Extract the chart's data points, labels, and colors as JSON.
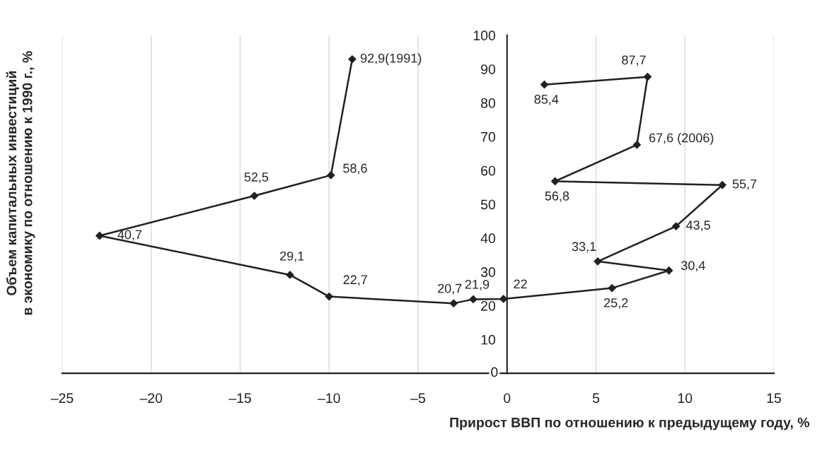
{
  "chart_data": {
    "type": "line",
    "xlabel": "Прирост ВВП по отношению к предыдущему году, %",
    "ylabel": "Объем капитальных инвестиций\nв экономику по отношению к 1990 г., %",
    "xlim": [
      -25,
      15
    ],
    "ylim": [
      0,
      100
    ],
    "xticks": [
      {
        "value": -25,
        "label": "–25"
      },
      {
        "value": -20,
        "label": "–20"
      },
      {
        "value": -15,
        "label": "–15"
      },
      {
        "value": -10,
        "label": "–10"
      },
      {
        "value": -5,
        "label": "–5"
      },
      0,
      5,
      10,
      15
    ],
    "yticks": [
      0,
      10,
      20,
      30,
      40,
      50,
      60,
      70,
      80,
      90,
      100
    ],
    "grid": "x",
    "marker": "diamond",
    "line_style": "solid",
    "series": [
      {
        "color": "#231f20",
        "x": [
          -8.7,
          -9.9,
          -14.2,
          -22.9,
          -12.2,
          -10.0,
          -3.0,
          -1.9,
          -0.2,
          5.9,
          9.1,
          5.1,
          9.5,
          12.1,
          2.7,
          7.3,
          7.9,
          2.1
        ],
        "values": [
          92.9,
          58.6,
          52.5,
          40.7,
          29.1,
          22.7,
          20.7,
          21.9,
          22,
          25.2,
          30.4,
          33.1,
          43.5,
          55.7,
          56.8,
          67.6,
          87.7,
          85.4
        ],
        "value_labels": [
          "92,9(1991)",
          "58,6",
          "52,5",
          "40,7",
          "29,1",
          "22,7",
          "20,7",
          "21,9",
          "22",
          "25,2",
          "30,4",
          "33,1",
          "43,5",
          "55,7",
          "56,8",
          "67,6 (2006)",
          "87,7",
          "85,4"
        ]
      }
    ]
  }
}
